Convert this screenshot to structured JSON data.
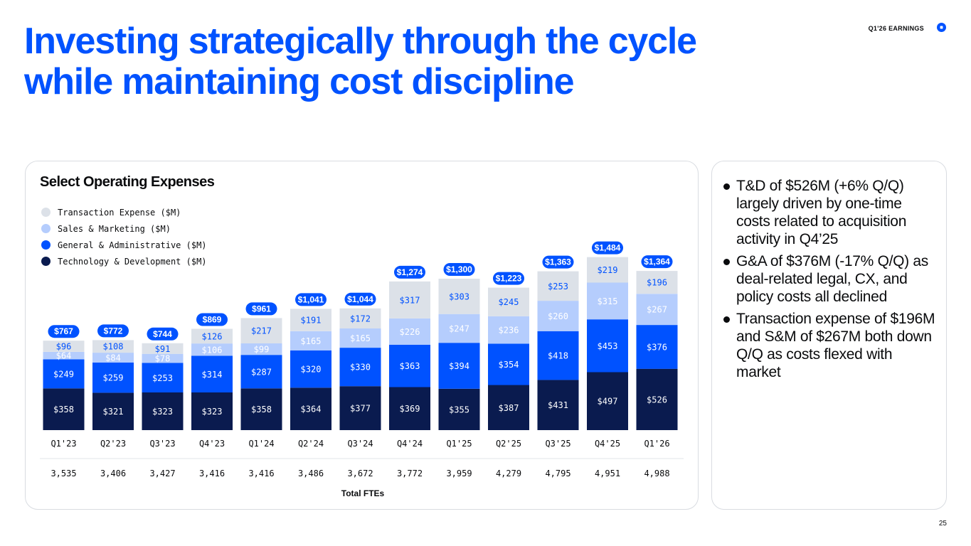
{
  "header": {
    "title_line1": "Investing strategically through the cycle",
    "title_line2": "while maintaining cost discipline",
    "tag": "Q1'26 EARNINGS",
    "logo_icon": "coinbase-logo-icon",
    "brand_color": "#0052ff"
  },
  "chart_data": {
    "type": "bar",
    "stacked": true,
    "title": "Select Operating Expenses",
    "categories": [
      "Q1'23",
      "Q2'23",
      "Q3'23",
      "Q4'23",
      "Q1'24",
      "Q2'24",
      "Q3'24",
      "Q4'24",
      "Q1'25",
      "Q2'25",
      "Q3'25",
      "Q4'25",
      "Q1'26"
    ],
    "series": [
      {
        "name": "Technology & Development ($M)",
        "color": "#0a1b4f",
        "values": [
          358,
          321,
          323,
          323,
          358,
          364,
          377,
          369,
          355,
          387,
          431,
          497,
          526
        ]
      },
      {
        "name": "General & Administrative ($M)",
        "color": "#0052ff",
        "values": [
          249,
          259,
          253,
          314,
          287,
          320,
          330,
          363,
          394,
          354,
          418,
          453,
          376
        ]
      },
      {
        "name": "Sales & Marketing ($M)",
        "color": "#b5cdfd",
        "values": [
          64,
          84,
          78,
          106,
          99,
          165,
          165,
          226,
          247,
          236,
          260,
          315,
          267
        ]
      },
      {
        "name": "Transaction Expense ($M)",
        "color": "#dce1e8",
        "values": [
          96,
          108,
          91,
          126,
          217,
          191,
          172,
          317,
          303,
          245,
          253,
          219,
          196
        ]
      }
    ],
    "totals": [
      "$767",
      "$772",
      "$744",
      "$869",
      "$961",
      "$1,041",
      "$1,044",
      "$1,274",
      "$1,300",
      "$1,223",
      "$1,363",
      "$1,484",
      "$1,364"
    ],
    "fte_label": "Total FTEs",
    "ftes": [
      "3,535",
      "3,406",
      "3,427",
      "3,416",
      "3,416",
      "3,486",
      "3,672",
      "3,772",
      "3,959",
      "4,279",
      "4,795",
      "4,951",
      "4,988"
    ],
    "legend_position": "top-left",
    "grid": false
  },
  "notes": [
    "T&D of $526M (+6% Q/Q) largely driven by one-time costs related to acquisition activity in Q4’25",
    "G&A of $376M (-17% Q/Q) as deal-related legal, CX, and policy costs all declined",
    "Transaction expense of $196M and S&M of $267M both down Q/Q as costs flexed with market"
  ],
  "page_number": "25"
}
